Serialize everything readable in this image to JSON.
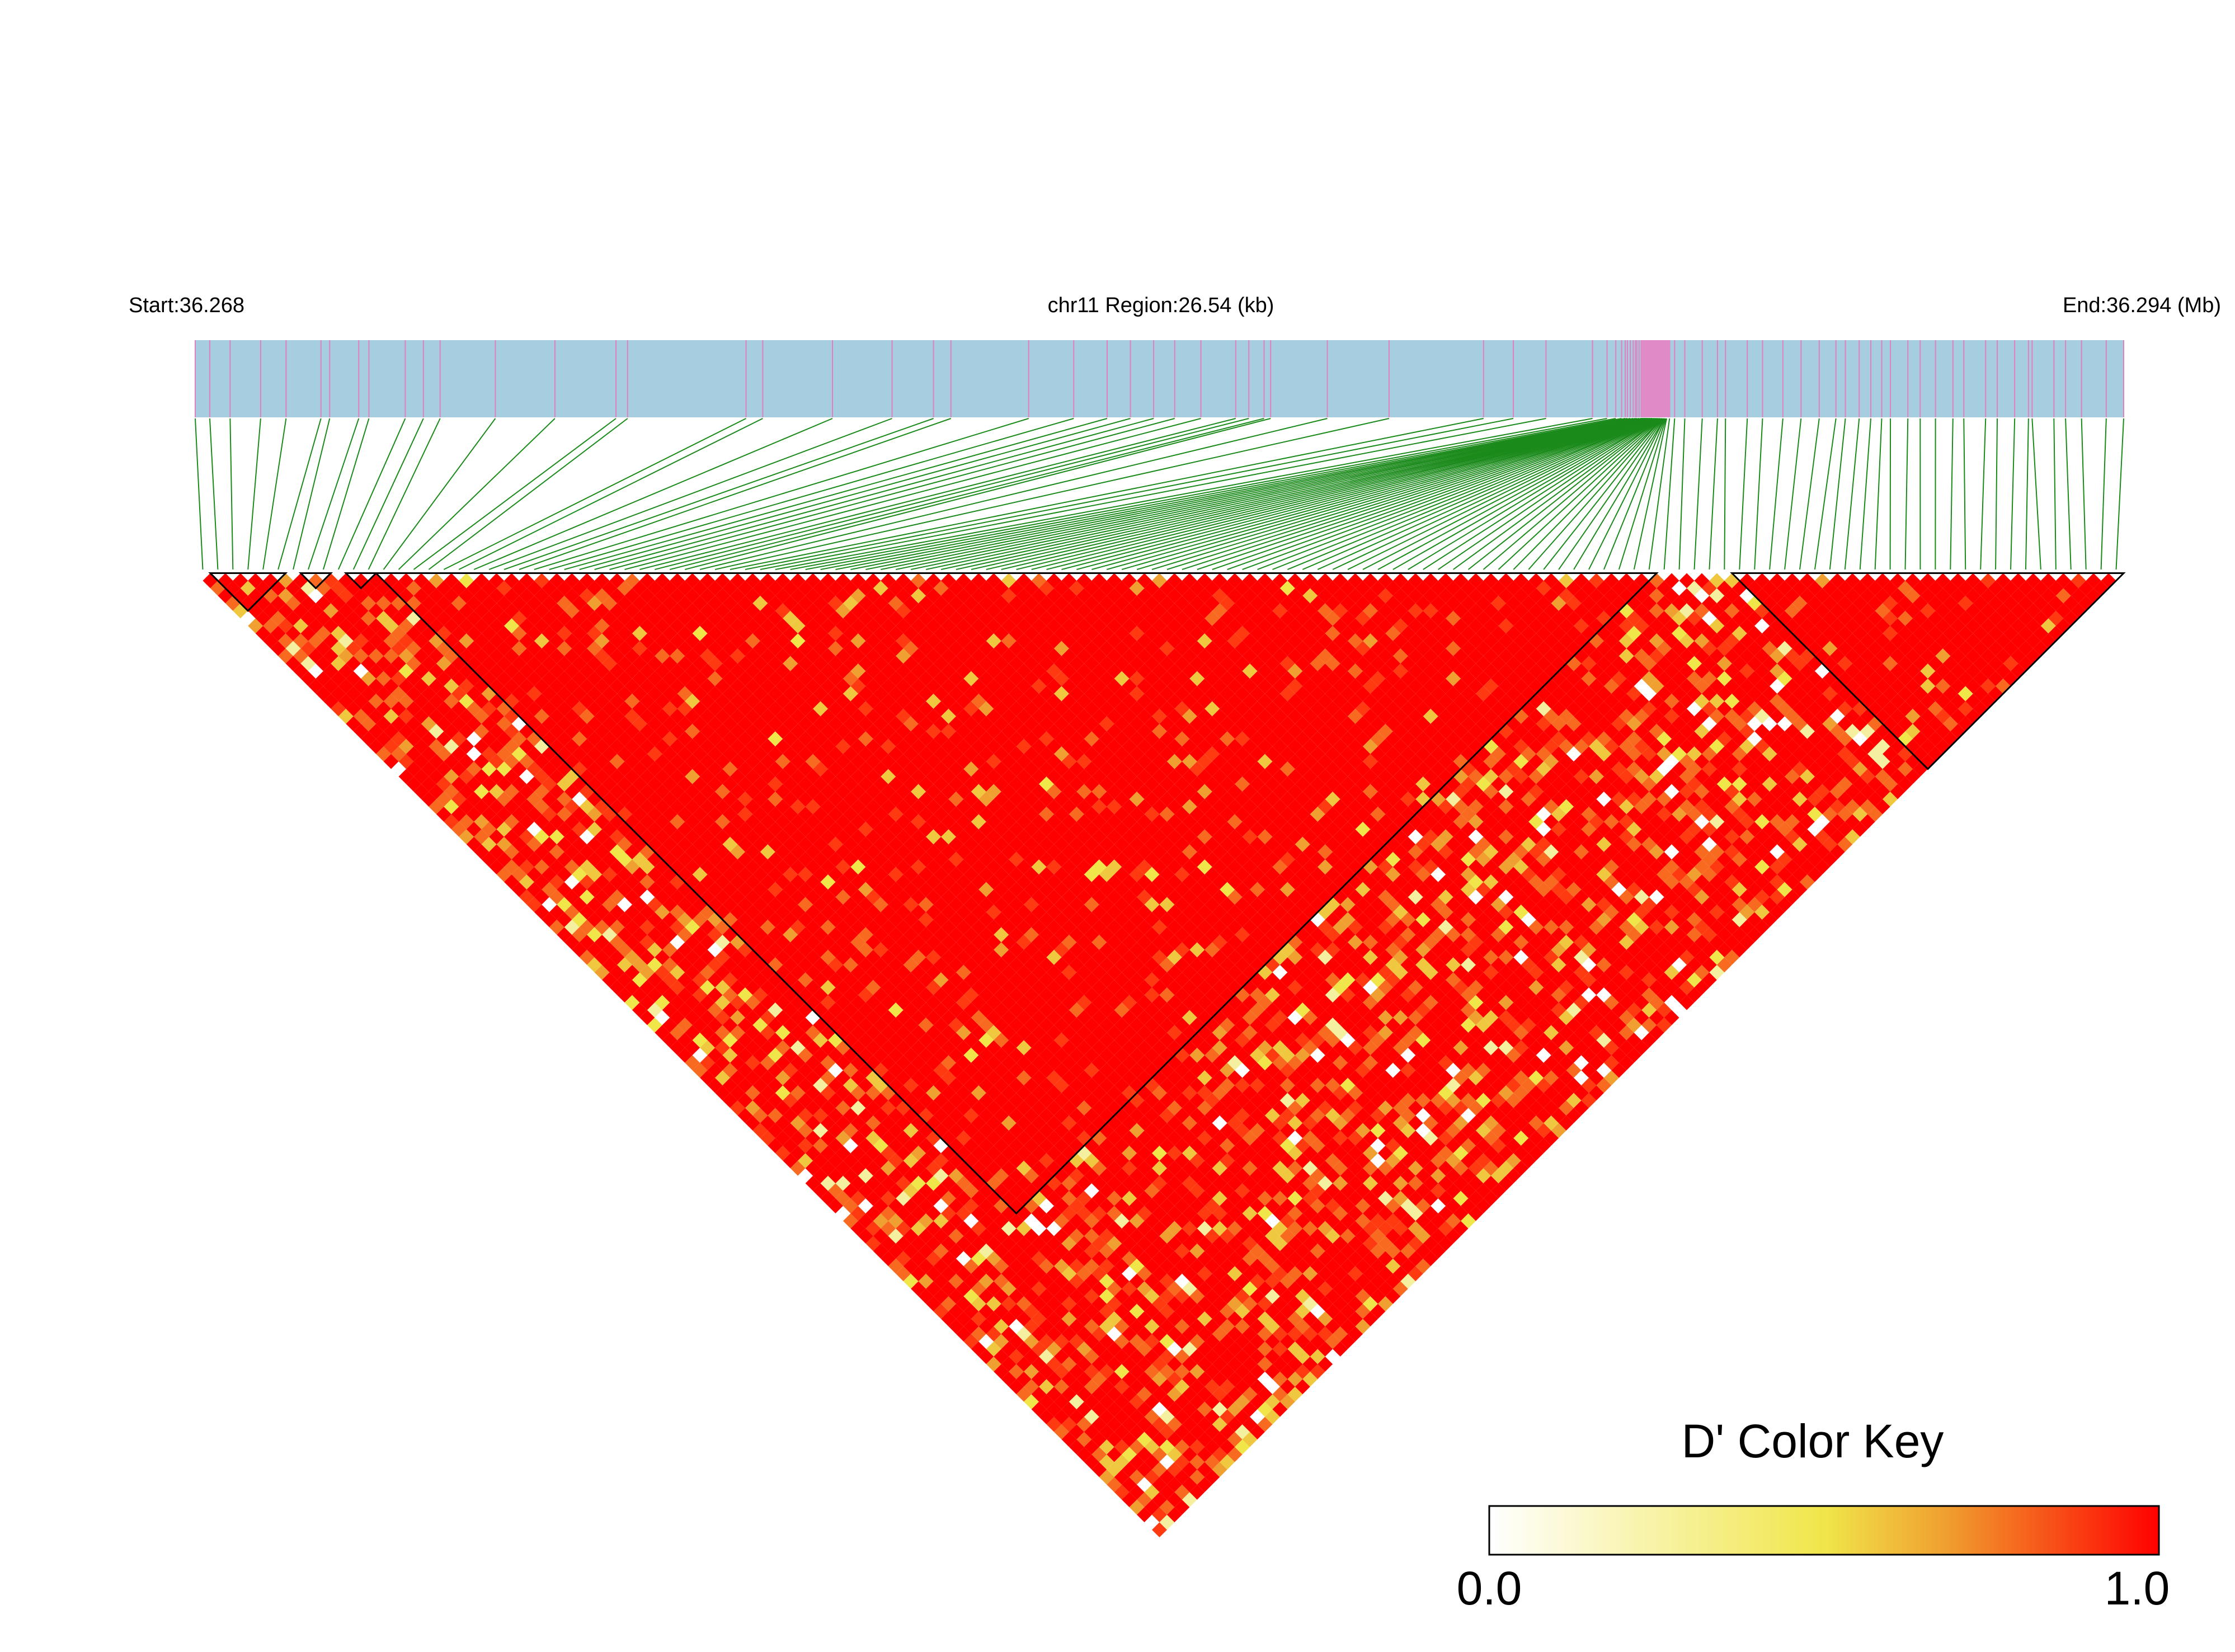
{
  "chart_data": {
    "type": "heatmap",
    "plot_kind": "LD block heatmap",
    "header": {
      "start_label": "Start:36.268",
      "region_label": "chr11 Region:26.54 (kb)",
      "end_label": "End:36.294 (Mb)"
    },
    "region": {
      "chromosome": "chr11",
      "start_mb": 36.268,
      "end_mb": 36.294,
      "length_kb": 26.54
    },
    "snp_count": 128,
    "snp_positions_kb": [
      0.0,
      0.2,
      0.48,
      0.9,
      1.25,
      1.73,
      1.85,
      2.25,
      2.39,
      2.89,
      3.14,
      3.37,
      4.13,
      4.95,
      5.79,
      5.95,
      7.58,
      7.81,
      8.77,
      9.59,
      10.16,
      10.4,
      11.47,
      12.09,
      12.55,
      12.87,
      13.19,
      13.48,
      13.84,
      14.32,
      14.5,
      14.71,
      14.8,
      15.58,
      16.43,
      17.73,
      18.14,
      18.59,
      19.23,
      19.43,
      19.55,
      19.63,
      19.68,
      19.71,
      19.75,
      19.79,
      19.82,
      19.84,
      19.87,
      19.9,
      19.91,
      19.92,
      19.93,
      19.94,
      19.94,
      19.95,
      19.96,
      19.96,
      19.97,
      19.98,
      19.99,
      19.99,
      20.0,
      20.01,
      20.02,
      20.02,
      20.03,
      20.04,
      20.05,
      20.05,
      20.06,
      20.07,
      20.08,
      20.08,
      20.09,
      20.1,
      20.1,
      20.11,
      20.12,
      20.13,
      20.13,
      20.14,
      20.15,
      20.16,
      20.16,
      20.17,
      20.18,
      20.19,
      20.19,
      20.2,
      20.21,
      20.22,
      20.22,
      20.23,
      20.24,
      20.25,
      20.29,
      20.36,
      20.5,
      20.74,
      20.95,
      21.06,
      21.36,
      21.57,
      21.85,
      22.1,
      22.35,
      22.58,
      22.71,
      22.9,
      23.06,
      23.21,
      23.33,
      23.57,
      23.74,
      23.95,
      24.19,
      24.34,
      24.64,
      24.8,
      25.04,
      25.23,
      25.28,
      25.58,
      25.74,
      25.96,
      26.3,
      26.54
    ],
    "ld_metric": "D'",
    "d_prime_matrix_encoding": "Row i holds D' values for SNP pairs (i, i+1 ... i+k), one entry per partner SNP. Most pairs are at or near 1.0 (red); scattered lower values appear as orange, yellow and white cells.",
    "haplotype_blocks": [
      {
        "first_snp": 1,
        "last_snp": 5
      },
      {
        "first_snp": 7,
        "last_snp": 8
      },
      {
        "first_snp": 10,
        "last_snp": 11
      },
      {
        "first_snp": 12,
        "last_snp": 96
      },
      {
        "first_snp": 102,
        "last_snp": 127
      }
    ],
    "color_key": {
      "title": "D' Color Key",
      "min_label": "0.0",
      "max_label": "1.0",
      "min": 0.0,
      "max": 1.0,
      "stops": [
        "#ffffff",
        "#f0e64a",
        "#f0a030",
        "#ff0000"
      ]
    },
    "colors": {
      "map_bar": "#a6cde0",
      "snp_tick": "#e080c0",
      "highlight_bar": "#e08ac8",
      "connector": "#1a8a1a",
      "high_ld": "#ff0000",
      "mid_ld": "#f0a030",
      "low_ld": "#f0e64a",
      "no_ld": "#ffffff",
      "block_outline": "#000000"
    }
  }
}
